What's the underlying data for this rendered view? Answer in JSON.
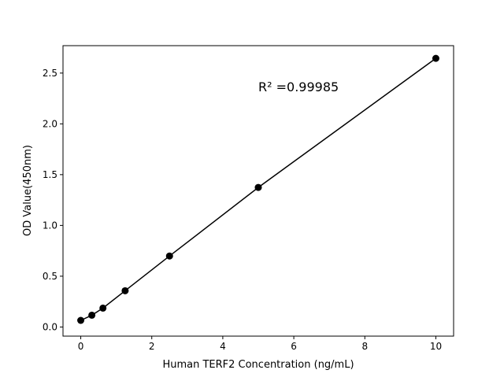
{
  "chart_data": {
    "type": "line",
    "title": "",
    "xlabel": "Human TERF2 Concentration (ng/mL)",
    "ylabel": "OD Value(450nm)",
    "xlim": [
      -0.5,
      10.5
    ],
    "ylim": [
      -0.09,
      2.77
    ],
    "xticks": [
      0,
      2,
      4,
      6,
      8,
      10
    ],
    "xtick_labels": [
      "0",
      "2",
      "4",
      "6",
      "8",
      "10"
    ],
    "yticks": [
      0.0,
      0.5,
      1.0,
      1.5,
      2.0,
      2.5
    ],
    "ytick_labels": [
      "0.0",
      "0.5",
      "1.0",
      "1.5",
      "2.0",
      "2.5"
    ],
    "grid": false,
    "series": [
      {
        "x": [
          0,
          0.3125,
          0.625,
          1.25,
          2.5,
          5,
          10
        ],
        "y": [
          0.065,
          0.116,
          0.186,
          0.357,
          0.699,
          1.374,
          2.645
        ],
        "color": "#000000",
        "marker": "circle"
      }
    ],
    "annotations": [
      {
        "text": "R² =0.99985",
        "x": 5.0,
        "y": 2.35
      }
    ]
  }
}
